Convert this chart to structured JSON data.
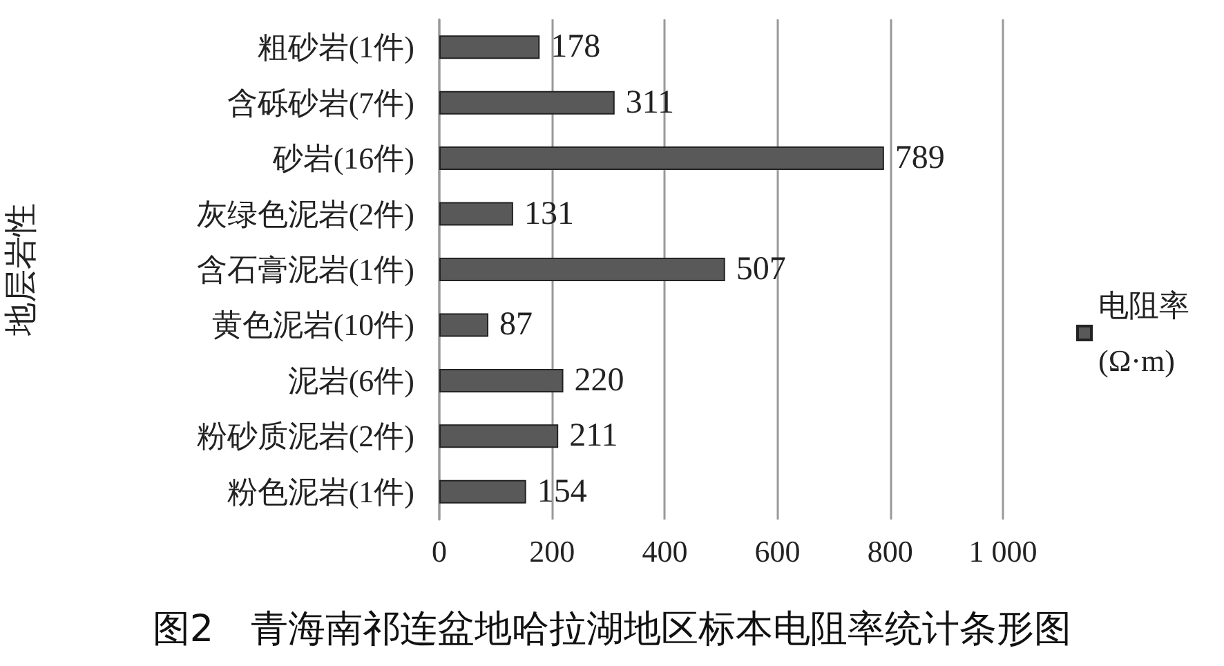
{
  "chart_data": {
    "type": "bar",
    "orientation": "horizontal",
    "title": "图2　青海南祁连盆地哈拉湖地区标本电阻率统计条形图",
    "ylabel": "地层岩性",
    "categories": [
      "粗砂岩(1件)",
      "含砾砂岩(7件)",
      "砂岩(16件)",
      "灰绿色泥岩(2件)",
      "含石膏泥岩(1件)",
      "黄色泥岩(10件)",
      "泥岩(6件)",
      "粉砂质泥岩(2件)",
      "粉色泥岩(1件)"
    ],
    "series": [
      {
        "name": "电阻率\n(Ω·m)",
        "color": "#595959",
        "values": [
          178,
          311,
          789,
          131,
          507,
          87,
          220,
          211,
          154
        ]
      }
    ],
    "xlim": [
      0,
      1000
    ],
    "xticks": [
      0,
      200,
      400,
      600,
      800,
      {
        "value": 1000,
        "label": "1 000"
      }
    ],
    "grid": "x",
    "legend": "right",
    "data_labels": true
  }
}
